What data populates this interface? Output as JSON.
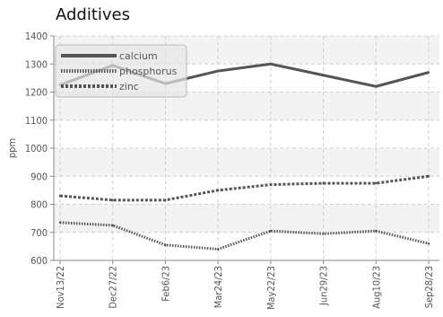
{
  "chart_data": {
    "type": "line",
    "title": "Additives",
    "xlabel": "",
    "ylabel": "ppm",
    "categories": [
      "Nov13/22",
      "Dec27/22",
      "Feb6/23",
      "Mar24/23",
      "May22/23",
      "Jun29/23",
      "Aug10/23",
      "Sep28/23"
    ],
    "ylim": [
      600,
      1400
    ],
    "yticks": [
      600,
      700,
      800,
      900,
      1000,
      1100,
      1200,
      1300,
      1400
    ],
    "grid": true,
    "legend_position": "top-left",
    "series": [
      {
        "name": "calcium",
        "values": [
          1225,
          1295,
          1230,
          1275,
          1300,
          1260,
          1220,
          1270
        ],
        "style": "solid",
        "color": "#555555"
      },
      {
        "name": "phosphorus",
        "values": [
          735,
          725,
          655,
          640,
          705,
          695,
          705,
          660
        ],
        "style": "dotted",
        "color": "#555555"
      },
      {
        "name": "zinc",
        "values": [
          830,
          815,
          815,
          850,
          870,
          875,
          875,
          900
        ],
        "style": "dashed",
        "color": "#555555"
      }
    ]
  }
}
